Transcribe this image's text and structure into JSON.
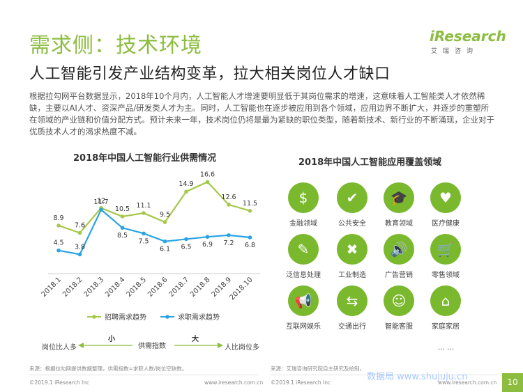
{
  "header": {
    "title": "需求侧：技术环境",
    "subtitle": "人工智能引发产业结构变革，拉大相关岗位人才缺口",
    "logo_main": "iResearch",
    "logo_sub": "艾瑞咨询"
  },
  "body_text": "根据拉勾网平台数据显示，2018年10个月内，人工智能人才增速要明显低于其岗位需求的增速，这意味着人工智能类人才依然稀缺，主要以AI人才、资深产品/研发类人才为主。同时，人工智能也在逐步被应用到各个领域，应用边界不断扩大，并逐步的重塑所在领域的产业链和价值分配方式。预计未来一年，技术岗位仍将是最为紧缺的职位类型，随着新技术、新行业的不断涌现，企业对于优质技术人才的渴求热度不减。",
  "chart_data": {
    "type": "line",
    "title": "2018年中国人工智能行业供需情况",
    "categories": [
      "2018.1",
      "2018.2",
      "2018.3",
      "2018.4",
      "2018.5",
      "2018.6",
      "2018.7",
      "2018.8",
      "2018.9",
      "2018.10"
    ],
    "series": [
      {
        "name": "招聘需求趋势",
        "color": "#a6c84a",
        "values": [
          8.9,
          7.6,
          12,
          10.5,
          11.1,
          9.5,
          14.9,
          16.6,
          12.6,
          11.5
        ]
      },
      {
        "name": "求职需求趋势",
        "color": "#29a3e3",
        "values": [
          4.5,
          3.8,
          11.7,
          8.5,
          7.5,
          6.1,
          6.5,
          6.9,
          7.2,
          6.8
        ]
      }
    ],
    "ylim": [
      2,
      18
    ],
    "grid": false,
    "legend": "bottom"
  },
  "supply_scale": {
    "left_label": "岗位比人多",
    "small_label": "小",
    "middle_label": "供需指数",
    "big_label": "大",
    "right_label": "人比岗位多"
  },
  "apps": {
    "title": "2018年中国人工智能应用覆盖领域",
    "items": [
      {
        "label": "金融领域",
        "icon": "money-bag-icon",
        "glyph": "$"
      },
      {
        "label": "公共安全",
        "icon": "shield-icon",
        "glyph": "✔"
      },
      {
        "label": "教育领域",
        "icon": "graduation-cap-icon",
        "glyph": "🎓"
      },
      {
        "label": "医疗健康",
        "icon": "heart-icon",
        "glyph": "♥"
      },
      {
        "label": "泛信息处理",
        "icon": "document-edit-icon",
        "glyph": "✎"
      },
      {
        "label": "工业制造",
        "icon": "tools-icon",
        "glyph": "✖"
      },
      {
        "label": "广告营销",
        "icon": "speaker-icon",
        "glyph": "🔊"
      },
      {
        "label": "零售领域",
        "icon": "shopping-cart-icon",
        "glyph": "🛒"
      },
      {
        "label": "互联网娱乐",
        "icon": "megaphone-icon",
        "glyph": "📢"
      },
      {
        "label": "交通出行",
        "icon": "signpost-icon",
        "glyph": "⇆"
      },
      {
        "label": "智能客服",
        "icon": "customer-service-icon",
        "glyph": "☺"
      },
      {
        "label": "家庭家居",
        "icon": "home-icon",
        "glyph": "⌂"
      }
    ],
    "more": "… …"
  },
  "footer": {
    "source_left": "来源：根据拉勾网提供数据整理，供需指数=求职人数/岗位空缺数。",
    "source_right": "来源：艾瑞咨询研究院自主研究及绘制。",
    "copyright_left": "©2019.1 iResearch Inc",
    "url_left": "www.iresearch.com.cn",
    "copyright_right": "©2019.1 iResearch Inc",
    "url_right": "www.iresearch.com.cn",
    "watermark": "数据局 www.shujuju.cn",
    "page_number": "10"
  }
}
